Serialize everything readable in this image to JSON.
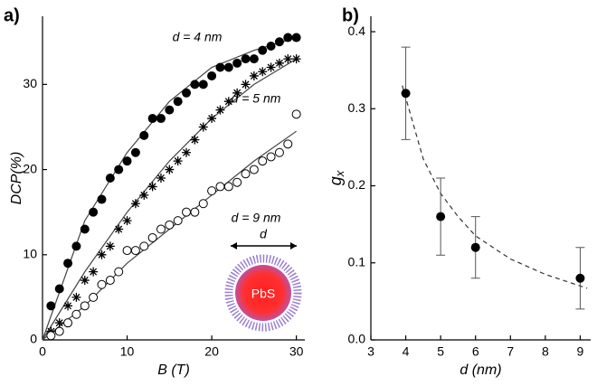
{
  "chart_data": [
    {
      "type": "scatter",
      "panel_label": "a)",
      "xlabel": "B (T)",
      "ylabel": "DCP(%)",
      "xlim": [
        0,
        31
      ],
      "ylim": [
        0,
        38
      ],
      "xticks": [
        0,
        10,
        20,
        30
      ],
      "yticks": [
        0,
        10,
        20,
        30
      ],
      "annotations": [
        "d = 4 nm",
        "d = 5 nm",
        "d = 9 nm",
        "d",
        "PbS"
      ],
      "x": [
        1,
        2,
        3,
        4,
        5,
        6,
        7,
        8,
        9,
        10,
        11,
        12,
        13,
        14,
        15,
        16,
        17,
        18,
        19,
        20,
        21,
        22,
        23,
        24,
        25,
        26,
        27,
        28,
        29,
        30
      ],
      "series": [
        {
          "marker": "filled",
          "color": "#000000",
          "values": [
            4,
            6,
            9,
            11,
            13,
            15,
            16.5,
            19,
            20,
            21,
            22,
            24,
            26,
            26,
            27,
            28,
            29,
            30,
            30,
            31,
            32,
            32,
            32.5,
            33,
            33,
            34,
            34.5,
            35,
            35.5,
            35.5
          ]
        },
        {
          "marker": "star",
          "color": "#000000",
          "values": [
            1,
            2,
            4,
            5,
            7,
            8,
            10,
            11,
            13,
            14,
            16,
            17,
            18,
            19,
            20,
            21,
            22,
            23.5,
            25,
            26,
            27,
            28,
            29,
            30,
            31,
            31.5,
            32,
            32.5,
            33,
            33
          ]
        },
        {
          "marker": "open",
          "color": "#000000",
          "values": [
            0.5,
            1,
            2,
            3,
            4,
            5,
            6.5,
            7,
            8,
            10.5,
            10.5,
            11,
            12,
            13,
            13.5,
            14,
            15,
            15,
            16,
            17.5,
            18,
            18,
            18.5,
            19.5,
            20,
            21,
            21.5,
            22,
            23,
            26.5
          ]
        },
        {
          "marker": "line",
          "color": "#444444",
          "x": [
            0,
            5,
            10,
            15,
            20,
            25,
            30
          ],
          "values": [
            0,
            14,
            22,
            28,
            32,
            34,
            35.5
          ]
        },
        {
          "marker": "line",
          "color": "#444444",
          "x": [
            0,
            5,
            10,
            15,
            20,
            25,
            30
          ],
          "values": [
            0,
            8,
            15,
            21,
            26,
            30,
            33
          ]
        },
        {
          "marker": "line",
          "color": "#444444",
          "x": [
            0,
            5,
            10,
            15,
            20,
            25,
            30
          ],
          "values": [
            0,
            4,
            9,
            13,
            17,
            21,
            24.5
          ]
        }
      ]
    },
    {
      "type": "errorbar",
      "panel_label": "b)",
      "xlabel": "d (nm)",
      "ylabel": "g",
      "ylabel_subscript": "x",
      "xlim": [
        3,
        9.3
      ],
      "ylim": [
        0,
        0.42
      ],
      "xticks": [
        3,
        4,
        5,
        6,
        7,
        8,
        9
      ],
      "yticks": [
        {
          "value": 0,
          "label": "0.0"
        },
        0.1,
        0.2,
        0.3,
        0.4
      ],
      "x": [
        4,
        5,
        6,
        9
      ],
      "series": [
        {
          "marker": "filled",
          "color": "#000000",
          "values": [
            0.32,
            0.16,
            0.12,
            0.08
          ],
          "errors": [
            0.06,
            0.05,
            0.04,
            0.04
          ]
        },
        {
          "marker": "dashed",
          "color": "#333333",
          "x": [
            3.9,
            4.5,
            5,
            5.5,
            6,
            7,
            8,
            9,
            9.2
          ],
          "values": [
            0.33,
            0.235,
            0.19,
            0.16,
            0.135,
            0.105,
            0.085,
            0.07,
            0.067
          ]
        }
      ]
    }
  ]
}
